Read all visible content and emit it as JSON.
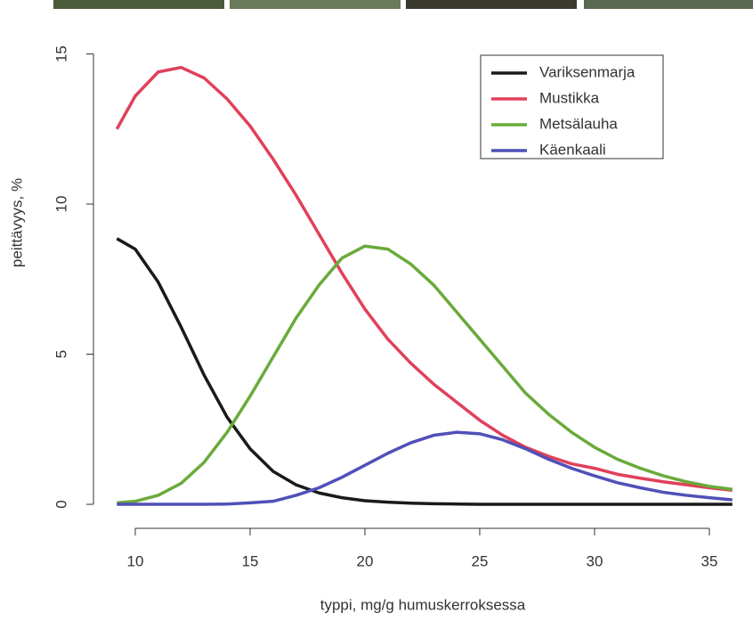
{
  "chart_data": {
    "type": "line",
    "x_label": "typpi, mg/g humuskerroksessa",
    "y_label": "peittävyys, %",
    "x": [
      9.2,
      10,
      11,
      12,
      13,
      14,
      15,
      16,
      17,
      18,
      19,
      20,
      21,
      22,
      23,
      24,
      25,
      26,
      27,
      28,
      29,
      30,
      31,
      32,
      33,
      34,
      35,
      36
    ],
    "series": [
      {
        "name": "Variksenmarja",
        "color": "#1a1a1a",
        "values": [
          8.85,
          8.5,
          7.4,
          5.9,
          4.3,
          2.9,
          1.85,
          1.1,
          0.65,
          0.38,
          0.22,
          0.12,
          0.07,
          0.04,
          0.02,
          0.01,
          0,
          0,
          0,
          0,
          0,
          0,
          0,
          0,
          0,
          0,
          0,
          0
        ]
      },
      {
        "name": "Mustikka",
        "color": "#e0405a",
        "values": [
          12.5,
          13.6,
          14.4,
          14.55,
          14.2,
          13.5,
          12.6,
          11.5,
          10.3,
          9.0,
          7.7,
          6.5,
          5.5,
          4.7,
          4.0,
          3.4,
          2.8,
          2.3,
          1.9,
          1.6,
          1.35,
          1.2,
          1.0,
          0.87,
          0.75,
          0.65,
          0.55,
          0.47
        ]
      },
      {
        "name": "Metsälauha",
        "color": "#6aaa3a",
        "values": [
          0.05,
          0.1,
          0.3,
          0.7,
          1.4,
          2.4,
          3.6,
          4.9,
          6.2,
          7.3,
          8.2,
          8.6,
          8.5,
          8.0,
          7.3,
          6.4,
          5.5,
          4.6,
          3.7,
          3.0,
          2.4,
          1.9,
          1.5,
          1.2,
          0.95,
          0.75,
          0.6,
          0.5
        ]
      },
      {
        "name": "Käenkaali",
        "color": "#5050b8",
        "values": [
          0,
          0,
          0,
          0,
          0,
          0.01,
          0.05,
          0.1,
          0.3,
          0.55,
          0.9,
          1.3,
          1.7,
          2.05,
          2.3,
          2.4,
          2.35,
          2.15,
          1.85,
          1.5,
          1.2,
          0.95,
          0.72,
          0.55,
          0.4,
          0.3,
          0.22,
          0.15
        ]
      }
    ],
    "xlim": [
      8.18,
      36.9
    ],
    "ylim": [
      -0.8,
      16.5
    ],
    "xticks": [
      10,
      15,
      20,
      25,
      30,
      35
    ],
    "yticks": [
      0,
      5,
      10,
      15
    ],
    "legend": "top-right"
  }
}
